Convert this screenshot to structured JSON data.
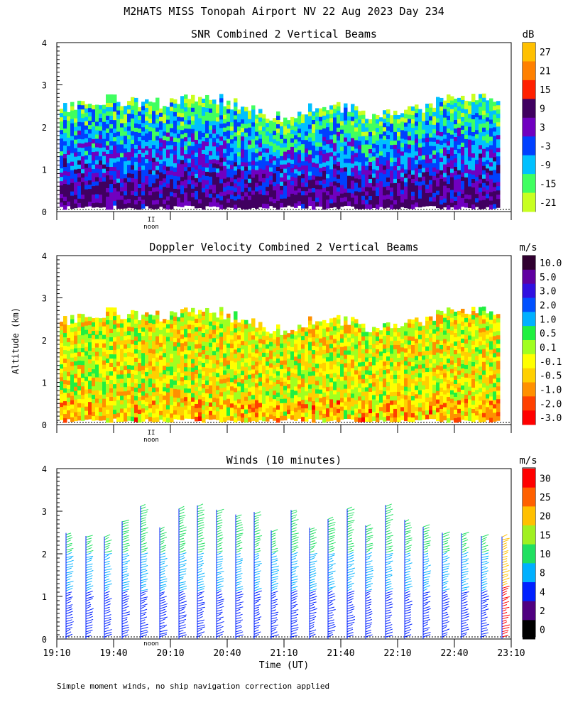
{
  "title": "M2HATS MISS Tonopah Airport NV  22 Aug 2023 Day 234",
  "footnote": "Simple moment winds, no ship navigation correction applied",
  "ylabel": "Altitude (km)",
  "xlabel": "Time (UT)",
  "noon_label": "noon",
  "noon_marker": "II",
  "time_ticks": [
    "19:10",
    "19:40",
    "20:10",
    "20:40",
    "21:10",
    "21:40",
    "22:10",
    "22:40",
    "23:10"
  ],
  "alt_ticks": [
    "0",
    "1",
    "2",
    "3",
    "4"
  ],
  "chart_data": [
    {
      "type": "heatmap",
      "title": "SNR Combined 2 Vertical Beams",
      "units": "dB",
      "x": [
        "19:10",
        "23:10"
      ],
      "ylim": [
        0,
        4
      ],
      "colorbar": {
        "labels": [
          "27",
          "21",
          "15",
          "9",
          "3",
          "-3",
          "-9",
          "-15",
          "-21"
        ],
        "colors": [
          "#ffc000",
          "#ff8000",
          "#ff2000",
          "#400060",
          "#7000c0",
          "#0040ff",
          "#00c0ff",
          "#40ff60",
          "#c8ff20"
        ]
      }
    },
    {
      "type": "heatmap",
      "title": "Doppler Velocity Combined 2 Vertical Beams",
      "units": "m/s",
      "x": [
        "19:10",
        "23:10"
      ],
      "ylim": [
        0,
        4
      ],
      "colorbar": {
        "labels": [
          "10.0",
          "5.0",
          "3.0",
          "2.0",
          "1.0",
          "0.5",
          "0.1",
          "-0.1",
          "-0.5",
          "-1.0",
          "-2.0",
          "-3.0"
        ],
        "colors": [
          "#300030",
          "#6000a0",
          "#3010e0",
          "#0050ff",
          "#00b0ff",
          "#20f040",
          "#a0ff20",
          "#ffff00",
          "#ffd000",
          "#ff9000",
          "#ff4000",
          "#ff0000"
        ]
      }
    },
    {
      "type": "scatter",
      "title": "Winds (10 minutes)",
      "units": "m/s",
      "x": [
        "19:10",
        "23:10"
      ],
      "ylim": [
        0,
        4
      ],
      "colorbar": {
        "labels": [
          "30",
          "25",
          "20",
          "15",
          "10",
          "8",
          "4",
          "2",
          "0"
        ],
        "colors": [
          "#ff0000",
          "#ff6000",
          "#ffc000",
          "#a0f020",
          "#20e060",
          "#00b0ff",
          "#0020ff",
          "#500080",
          "#000000"
        ]
      }
    }
  ]
}
